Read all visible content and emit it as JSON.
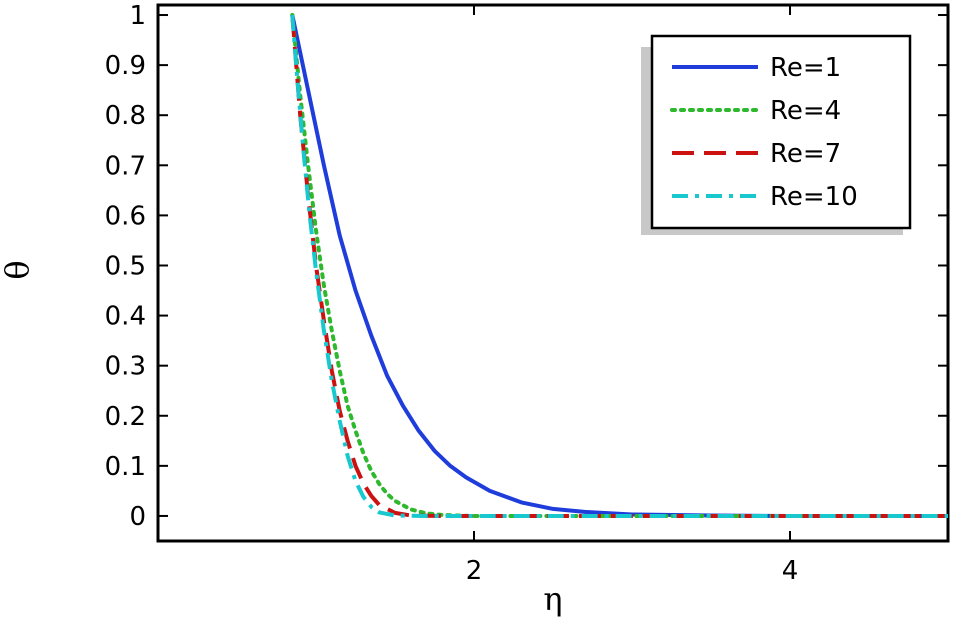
{
  "chart_data": {
    "type": "line",
    "xlabel": "η",
    "ylabel": "θ",
    "xlim": [
      0.0,
      5.0
    ],
    "ylim": [
      -0.05,
      1.02
    ],
    "xticks": [
      2,
      4
    ],
    "yticks": [
      0,
      0.1,
      0.2,
      0.3,
      0.4,
      0.5,
      0.6,
      0.7,
      0.8,
      0.9,
      1
    ],
    "grid": false,
    "legend_position": "top-right",
    "series": [
      {
        "name": "Re=1",
        "color": "#1f3ddb",
        "dash": "solid",
        "x": [
          0.85,
          0.95,
          1.05,
          1.15,
          1.25,
          1.35,
          1.45,
          1.55,
          1.65,
          1.75,
          1.85,
          1.95,
          2.1,
          2.3,
          2.5,
          2.7,
          3.0,
          3.5,
          4.0,
          5.0
        ],
        "y": [
          1.0,
          0.85,
          0.7,
          0.56,
          0.45,
          0.36,
          0.28,
          0.22,
          0.17,
          0.13,
          0.1,
          0.077,
          0.05,
          0.027,
          0.014,
          0.008,
          0.003,
          0.001,
          0.0,
          0.0
        ]
      },
      {
        "name": "Re=4",
        "color": "#2db82d",
        "dash": "dotted",
        "x": [
          0.85,
          0.9,
          0.95,
          1.0,
          1.05,
          1.1,
          1.15,
          1.2,
          1.25,
          1.3,
          1.35,
          1.4,
          1.45,
          1.5,
          1.6,
          1.7,
          1.8,
          2.0,
          3.0,
          5.0
        ],
        "y": [
          1.0,
          0.84,
          0.7,
          0.57,
          0.46,
          0.37,
          0.29,
          0.22,
          0.17,
          0.125,
          0.09,
          0.064,
          0.044,
          0.03,
          0.013,
          0.005,
          0.002,
          0.0,
          0.0,
          0.0
        ]
      },
      {
        "name": "Re=7",
        "color": "#cc1111",
        "dash": "dashed",
        "x": [
          0.85,
          0.9,
          0.95,
          1.0,
          1.05,
          1.1,
          1.15,
          1.2,
          1.25,
          1.3,
          1.35,
          1.4,
          1.5,
          1.6,
          1.8,
          2.0,
          3.0,
          5.0
        ],
        "y": [
          1.0,
          0.8,
          0.64,
          0.5,
          0.39,
          0.29,
          0.21,
          0.15,
          0.1,
          0.065,
          0.04,
          0.022,
          0.006,
          0.001,
          0.0,
          0.0,
          0.0,
          0.0
        ]
      },
      {
        "name": "Re=10",
        "color": "#17c8cf",
        "dash": "dashdot",
        "x": [
          0.85,
          0.88,
          0.92,
          0.96,
          1.0,
          1.05,
          1.1,
          1.15,
          1.2,
          1.25,
          1.3,
          1.35,
          1.4,
          1.5,
          1.7,
          2.0,
          3.0,
          5.0
        ],
        "y": [
          1.0,
          0.88,
          0.73,
          0.6,
          0.49,
          0.37,
          0.27,
          0.19,
          0.12,
          0.07,
          0.038,
          0.018,
          0.007,
          0.001,
          0.0,
          0.0,
          0.0,
          0.0
        ]
      }
    ]
  }
}
